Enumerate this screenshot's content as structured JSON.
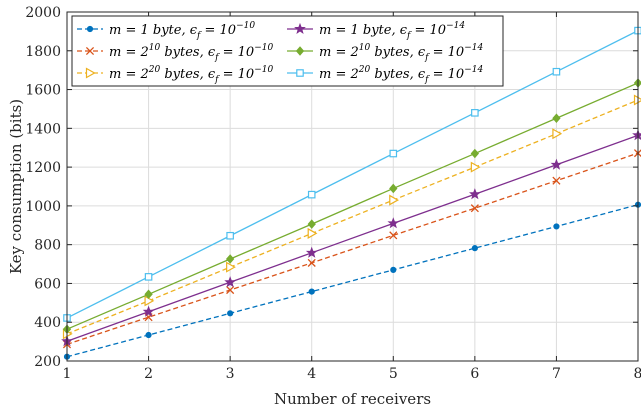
{
  "chart_data": {
    "type": "line",
    "title": "",
    "xlabel": "Number of receivers",
    "ylabel": "Key consumption (bits)",
    "xlim": [
      1,
      8
    ],
    "ylim": [
      200,
      2000
    ],
    "grid": true,
    "legend_position": "top-left",
    "x": [
      1,
      2,
      3,
      4,
      5,
      6,
      7,
      8
    ],
    "x_ticks": [
      "1",
      "2",
      "3",
      "4",
      "5",
      "6",
      "7",
      "8"
    ],
    "y_ticks": [
      "200",
      "400",
      "600",
      "800",
      "1000",
      "1200",
      "1400",
      "1600",
      "1800",
      "2000"
    ],
    "series": [
      {
        "key": "s1",
        "name": "m = 1 byte, εf = 10^-10",
        "legend": {
          "pre": "m = 1 byte, ϵ",
          "sub": "f",
          "mid": " = 10",
          "sup": "−10",
          "post": ""
        },
        "color": "#0072BD",
        "dash": true,
        "marker": "circle",
        "values": [
          222,
          334,
          446,
          558,
          670,
          782,
          894,
          1006
        ]
      },
      {
        "key": "s2",
        "name": "m = 2^10 bytes, εf = 10^-10",
        "legend": {
          "pre": "m = 2",
          "pre_sup": "10",
          "pre2": " bytes, ϵ",
          "sub": "f",
          "mid": " = 10",
          "sup": "−10",
          "post": ""
        },
        "color": "#D95319",
        "dash": true,
        "marker": "x",
        "values": [
          286,
          426,
          566,
          706,
          848,
          988,
          1130,
          1272
        ]
      },
      {
        "key": "s3",
        "name": "m = 2^20 bytes, εf = 10^-10",
        "legend": {
          "pre": "m = 2",
          "pre_sup": "20",
          "pre2": " bytes, ϵ",
          "sub": "f",
          "mid": " = 10",
          "sup": "−10",
          "post": ""
        },
        "color": "#EDB120",
        "dash": true,
        "marker": "triangle-right",
        "values": [
          340,
          510,
          684,
          858,
          1030,
          1200,
          1372,
          1546
        ]
      },
      {
        "key": "s4",
        "name": "m = 1 byte, εf = 10^-14",
        "legend": {
          "pre": "m = 1 byte, ϵ",
          "sub": "f",
          "mid": " = 10",
          "sup": "−14",
          "post": ""
        },
        "color": "#7E2F8E",
        "dash": false,
        "marker": "star",
        "values": [
          302,
          454,
          606,
          758,
          910,
          1060,
          1212,
          1364
        ]
      },
      {
        "key": "s5",
        "name": "m = 2^10 bytes, εf = 10^-14",
        "legend": {
          "pre": "m = 2",
          "pre_sup": "10",
          "pre2": " bytes, ϵ",
          "sub": "f",
          "mid": " = 10",
          "sup": "−14",
          "post": ""
        },
        "color": "#77AC30",
        "dash": false,
        "marker": "diamond",
        "values": [
          364,
          544,
          726,
          906,
          1090,
          1270,
          1452,
          1634
        ]
      },
      {
        "key": "s6",
        "name": "m = 2^20 bytes, εf = 10^-14",
        "legend": {
          "pre": "m = 2",
          "pre_sup": "20",
          "pre2": " bytes, ϵ",
          "sub": "f",
          "mid": " = 10",
          "sup": "−14",
          "post": ""
        },
        "color": "#4DBEEE",
        "dash": false,
        "marker": "square",
        "values": [
          422,
          634,
          846,
          1058,
          1270,
          1480,
          1692,
          1904
        ]
      }
    ]
  }
}
